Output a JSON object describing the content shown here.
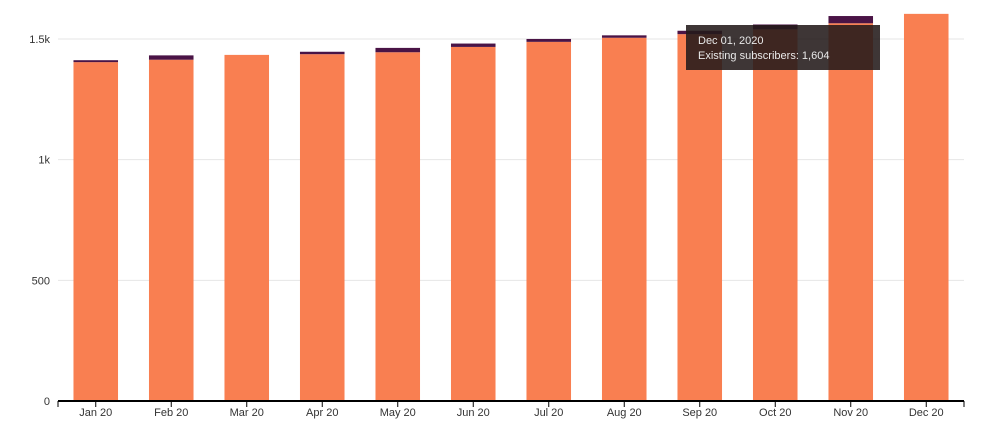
{
  "chart_data": {
    "type": "bar",
    "stacked": true,
    "title": "",
    "xlabel": "",
    "ylabel": "",
    "ylim": [
      0,
      1620
    ],
    "yticks": [
      0,
      500,
      1000,
      1500
    ],
    "ytick_labels": [
      "0",
      "500",
      "1k",
      "1.5k"
    ],
    "categories": [
      "Jan 20",
      "Feb 20",
      "Mar 20",
      "Apr 20",
      "May 20",
      "Jun 20",
      "Jul 20",
      "Aug 20",
      "Sep 20",
      "Oct 20",
      "Nov 20",
      "Dec 20"
    ],
    "series": [
      {
        "name": "Existing subscribers",
        "color": "#f97f51",
        "values": [
          1404,
          1414,
          1434,
          1437,
          1445,
          1467,
          1488,
          1505,
          1520,
          1540,
          1565,
          1604
        ]
      },
      {
        "color": "#4a1446",
        "values": [
          8,
          18,
          0,
          10,
          18,
          14,
          12,
          10,
          14,
          20,
          30,
          0
        ]
      }
    ],
    "grid": true,
    "legend": "none"
  },
  "tooltip": {
    "date": "Dec 01, 2020",
    "label": "Existing subscribers: 1,604"
  }
}
